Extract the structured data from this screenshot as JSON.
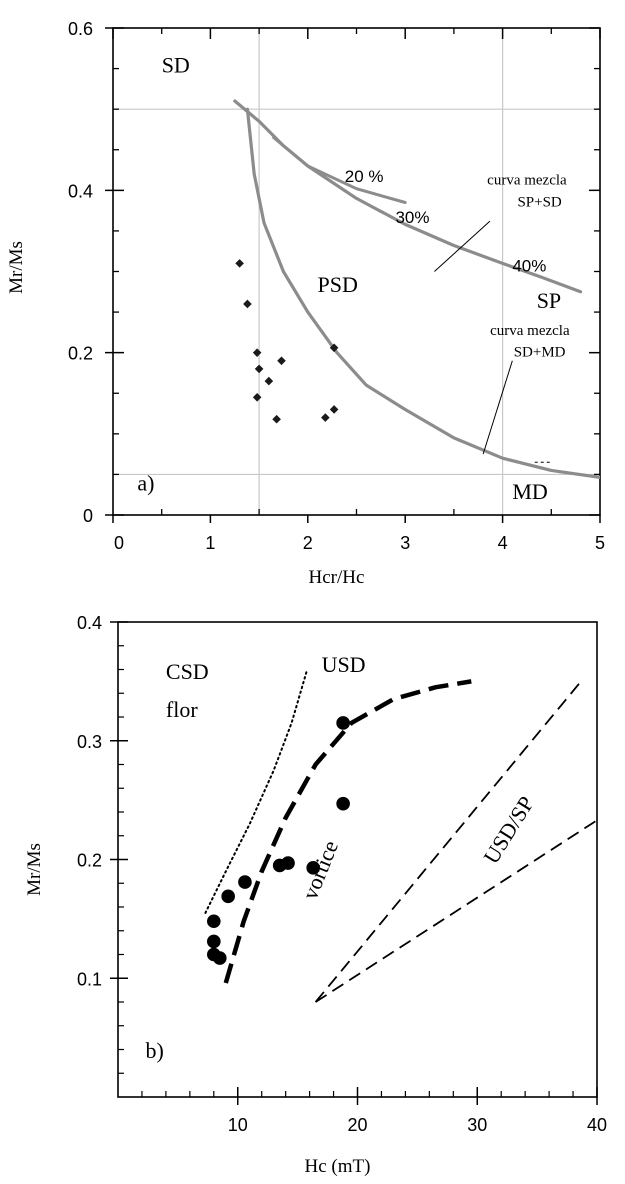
{
  "chart_data": [
    {
      "type": "scatter",
      "panel": "a)",
      "xlabel": "Hcr/Hc",
      "ylabel": "Mr/Ms",
      "xlim": [
        0,
        5
      ],
      "ylim": [
        0,
        0.6
      ],
      "x_ticks": [
        "0",
        "1",
        "2",
        "3",
        "4",
        "5"
      ],
      "y_ticks": [
        "0",
        "0.2",
        "0.4",
        "0.6"
      ],
      "x_ticks_values": [
        0,
        1,
        2,
        3,
        4,
        5
      ],
      "y_ticks_values": [
        0,
        0.2,
        0.4,
        0.6
      ],
      "grid": true,
      "grid_x": [
        1.5,
        4
      ],
      "grid_y": [
        0.05,
        0.5
      ],
      "points": [
        {
          "x": 1.3,
          "y": 0.31
        },
        {
          "x": 1.38,
          "y": 0.26
        },
        {
          "x": 1.48,
          "y": 0.2
        },
        {
          "x": 1.5,
          "y": 0.18
        },
        {
          "x": 1.48,
          "y": 0.145
        },
        {
          "x": 1.6,
          "y": 0.165
        },
        {
          "x": 1.73,
          "y": 0.19
        },
        {
          "x": 1.68,
          "y": 0.118
        },
        {
          "x": 2.18,
          "y": 0.12
        },
        {
          "x": 2.27,
          "y": 0.13
        },
        {
          "x": 2.27,
          "y": 0.206
        }
      ],
      "curves": [
        {
          "label": "curva mezcla SD+MD",
          "points": [
            [
              1.38,
              0.5
            ],
            [
              1.45,
              0.42
            ],
            [
              1.55,
              0.36
            ],
            [
              1.75,
              0.3
            ],
            [
              2.0,
              0.25
            ],
            [
              2.3,
              0.2
            ],
            [
              2.6,
              0.16
            ],
            [
              3.0,
              0.13
            ],
            [
              3.5,
              0.095
            ],
            [
              4.0,
              0.07
            ],
            [
              4.5,
              0.055
            ],
            [
              5.2,
              0.043
            ]
          ]
        },
        {
          "label": "curva mezcla SP+SD",
          "points": [
            [
              1.25,
              0.51
            ],
            [
              1.5,
              0.485
            ],
            [
              1.75,
              0.455
            ],
            [
              2.0,
              0.43
            ],
            [
              2.5,
              0.39
            ],
            [
              3.0,
              0.358
            ],
            [
              3.5,
              0.332
            ],
            [
              4.0,
              0.31
            ],
            [
              4.4,
              0.293
            ],
            [
              4.8,
              0.275
            ]
          ]
        },
        {
          "label": "20 %",
          "points": [
            [
              1.65,
              0.465
            ],
            [
              2.0,
              0.43
            ],
            [
              2.5,
              0.402
            ],
            [
              3.0,
              0.385
            ]
          ]
        }
      ],
      "annotations": {
        "sd": "SD",
        "psd": "PSD",
        "sp": "SP",
        "md": "MD",
        "pct20": "20 %",
        "pct30": "30%",
        "pct40": "40%",
        "mix1_line1": "curva mezcla",
        "mix1_line2": "SP+SD",
        "mix2_line1": "curva mezcla",
        "mix2_line2": "SD+MD",
        "panel_label": "a)"
      }
    },
    {
      "type": "scatter",
      "panel": "b)",
      "xlabel": "Hc (mT)",
      "ylabel": "Mr/Ms",
      "xlim": [
        0,
        40
      ],
      "ylim": [
        0,
        0.4
      ],
      "x_ticks": [
        "10",
        "20",
        "30",
        "40"
      ],
      "y_ticks": [
        "0.1",
        "0.2",
        "0.3",
        "0.4"
      ],
      "x_ticks_values": [
        10,
        20,
        30,
        40
      ],
      "y_ticks_values": [
        0.1,
        0.2,
        0.3,
        0.4
      ],
      "grid": false,
      "points": [
        {
          "x": 8.0,
          "y": 0.148
        },
        {
          "x": 8.0,
          "y": 0.131
        },
        {
          "x": 8.0,
          "y": 0.12
        },
        {
          "x": 8.5,
          "y": 0.117
        },
        {
          "x": 9.2,
          "y": 0.169
        },
        {
          "x": 10.6,
          "y": 0.181
        },
        {
          "x": 13.5,
          "y": 0.195
        },
        {
          "x": 14.2,
          "y": 0.197
        },
        {
          "x": 16.3,
          "y": 0.193
        },
        {
          "x": 18.8,
          "y": 0.315
        },
        {
          "x": 18.8,
          "y": 0.247
        }
      ],
      "lines": [
        {
          "style": "dotted",
          "points": [
            [
              7.3,
              0.155
            ],
            [
              9.0,
              0.19
            ],
            [
              11.0,
              0.23
            ],
            [
              13.0,
              0.275
            ],
            [
              14.5,
              0.315
            ],
            [
              15.8,
              0.36
            ]
          ]
        },
        {
          "style": "dashed-thick",
          "points": [
            [
              9.0,
              0.096
            ],
            [
              10.5,
              0.148
            ],
            [
              12.0,
              0.19
            ],
            [
              14.0,
              0.235
            ],
            [
              16.5,
              0.28
            ],
            [
              19.5,
              0.315
            ],
            [
              23.0,
              0.335
            ],
            [
              26.5,
              0.345
            ],
            [
              29.5,
              0.35
            ]
          ]
        },
        {
          "style": "dashed",
          "points": [
            [
              16.5,
              0.08
            ],
            [
              38.5,
              0.348
            ]
          ]
        },
        {
          "style": "dashed",
          "points": [
            [
              16.5,
              0.08
            ],
            [
              40,
              0.233
            ]
          ]
        }
      ],
      "annotations": {
        "csd_line1": "CSD",
        "csd_line2": "flor",
        "usd": "USD",
        "vortice": "vortice",
        "usdsp": "USD/SP",
        "panel_label": "b)"
      }
    }
  ]
}
